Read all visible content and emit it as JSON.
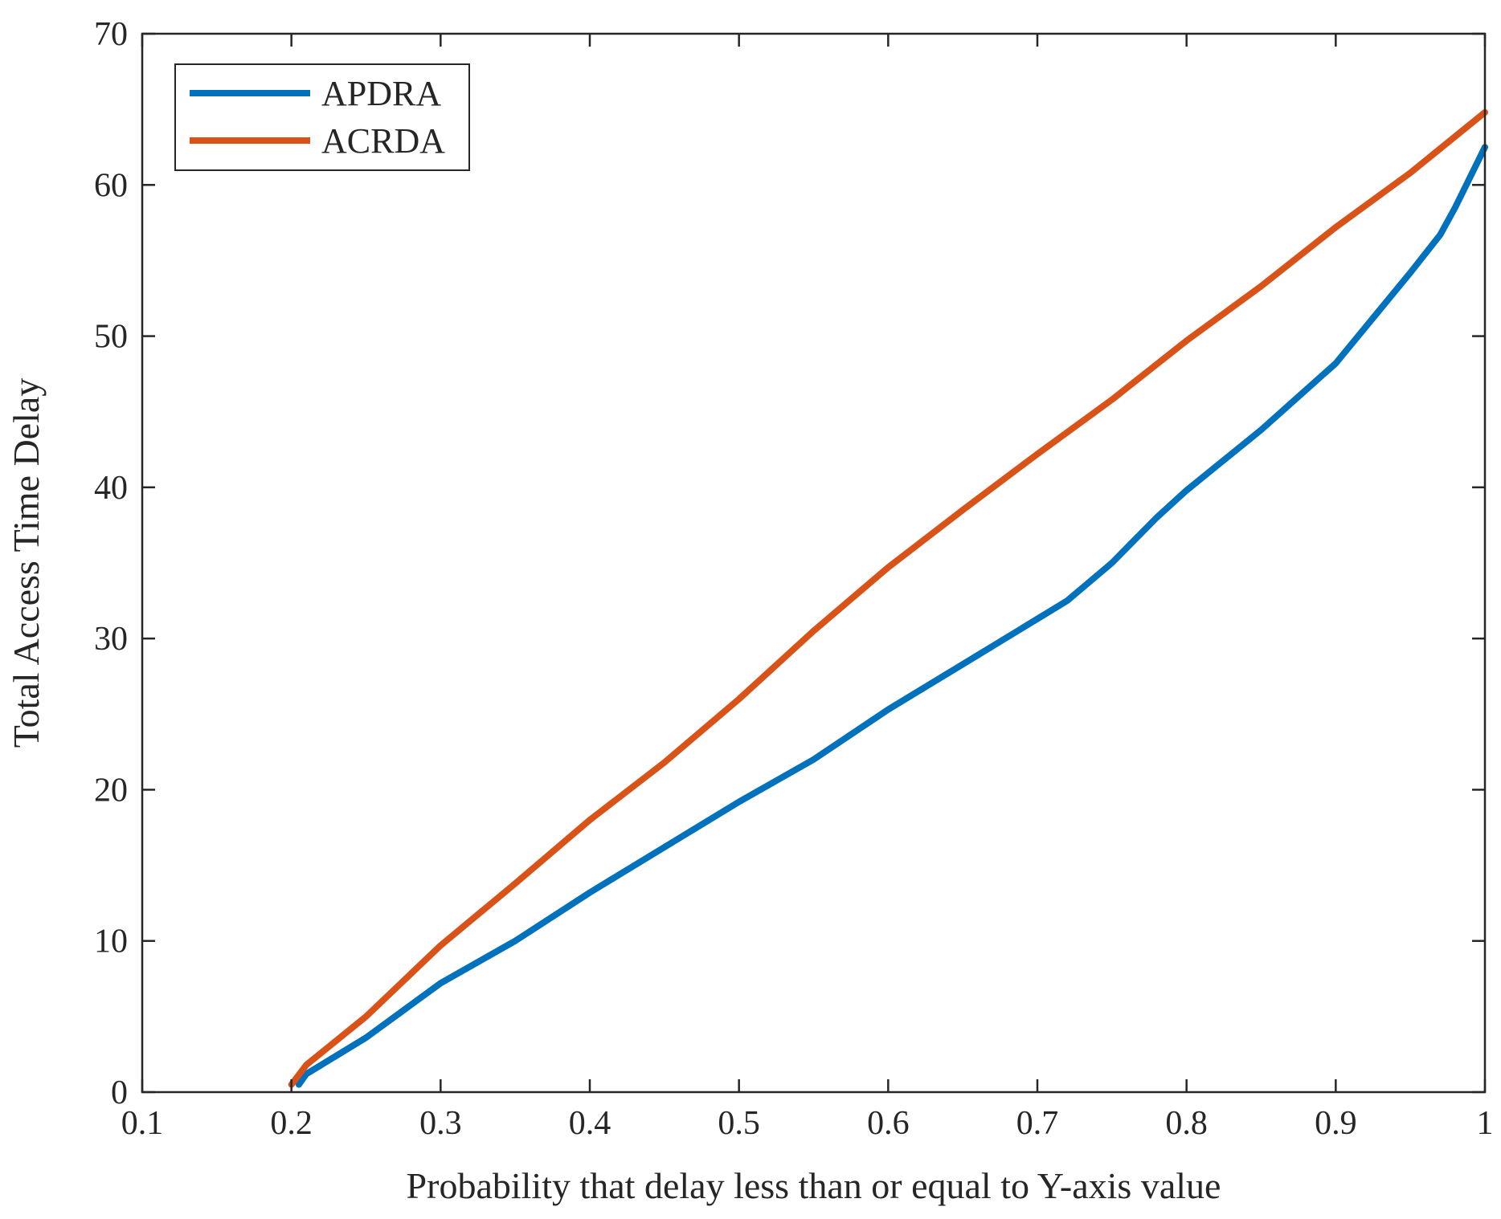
{
  "chart_data": {
    "type": "line",
    "title": "",
    "xlabel": "Probability that delay less than or equal to Y-axis value",
    "ylabel": "Total Access Time Delay",
    "xlim": [
      0.1,
      1
    ],
    "ylim": [
      0,
      70
    ],
    "xticks": [
      "0.1",
      "0.2",
      "0.3",
      "0.4",
      "0.5",
      "0.6",
      "0.7",
      "0.8",
      "0.9",
      "1"
    ],
    "yticks": [
      "0",
      "10",
      "20",
      "30",
      "40",
      "50",
      "60",
      "70"
    ],
    "grid": false,
    "legend_position": "top-left",
    "series": [
      {
        "name": "APDRA",
        "color": "#0072BD",
        "points": [
          [
            0.205,
            0.5
          ],
          [
            0.21,
            1.2
          ],
          [
            0.25,
            3.6
          ],
          [
            0.3,
            7.2
          ],
          [
            0.35,
            10.0
          ],
          [
            0.4,
            13.2
          ],
          [
            0.45,
            16.2
          ],
          [
            0.5,
            19.2
          ],
          [
            0.55,
            22.0
          ],
          [
            0.6,
            25.3
          ],
          [
            0.65,
            28.3
          ],
          [
            0.7,
            31.3
          ],
          [
            0.72,
            32.5
          ],
          [
            0.75,
            35.0
          ],
          [
            0.78,
            38.0
          ],
          [
            0.8,
            39.8
          ],
          [
            0.85,
            43.8
          ],
          [
            0.9,
            48.2
          ],
          [
            0.95,
            54.2
          ],
          [
            0.97,
            56.7
          ],
          [
            0.98,
            58.5
          ],
          [
            1.0,
            62.5
          ]
        ]
      },
      {
        "name": "ACRDA",
        "color": "#D95319",
        "points": [
          [
            0.2,
            0.5
          ],
          [
            0.21,
            1.8
          ],
          [
            0.25,
            5.0
          ],
          [
            0.3,
            9.7
          ],
          [
            0.35,
            13.8
          ],
          [
            0.4,
            18.0
          ],
          [
            0.45,
            21.8
          ],
          [
            0.5,
            26.0
          ],
          [
            0.55,
            30.5
          ],
          [
            0.6,
            34.7
          ],
          [
            0.65,
            38.5
          ],
          [
            0.7,
            42.2
          ],
          [
            0.75,
            45.8
          ],
          [
            0.8,
            49.7
          ],
          [
            0.85,
            53.3
          ],
          [
            0.9,
            57.2
          ],
          [
            0.95,
            60.8
          ],
          [
            1.0,
            64.8
          ]
        ]
      }
    ]
  }
}
